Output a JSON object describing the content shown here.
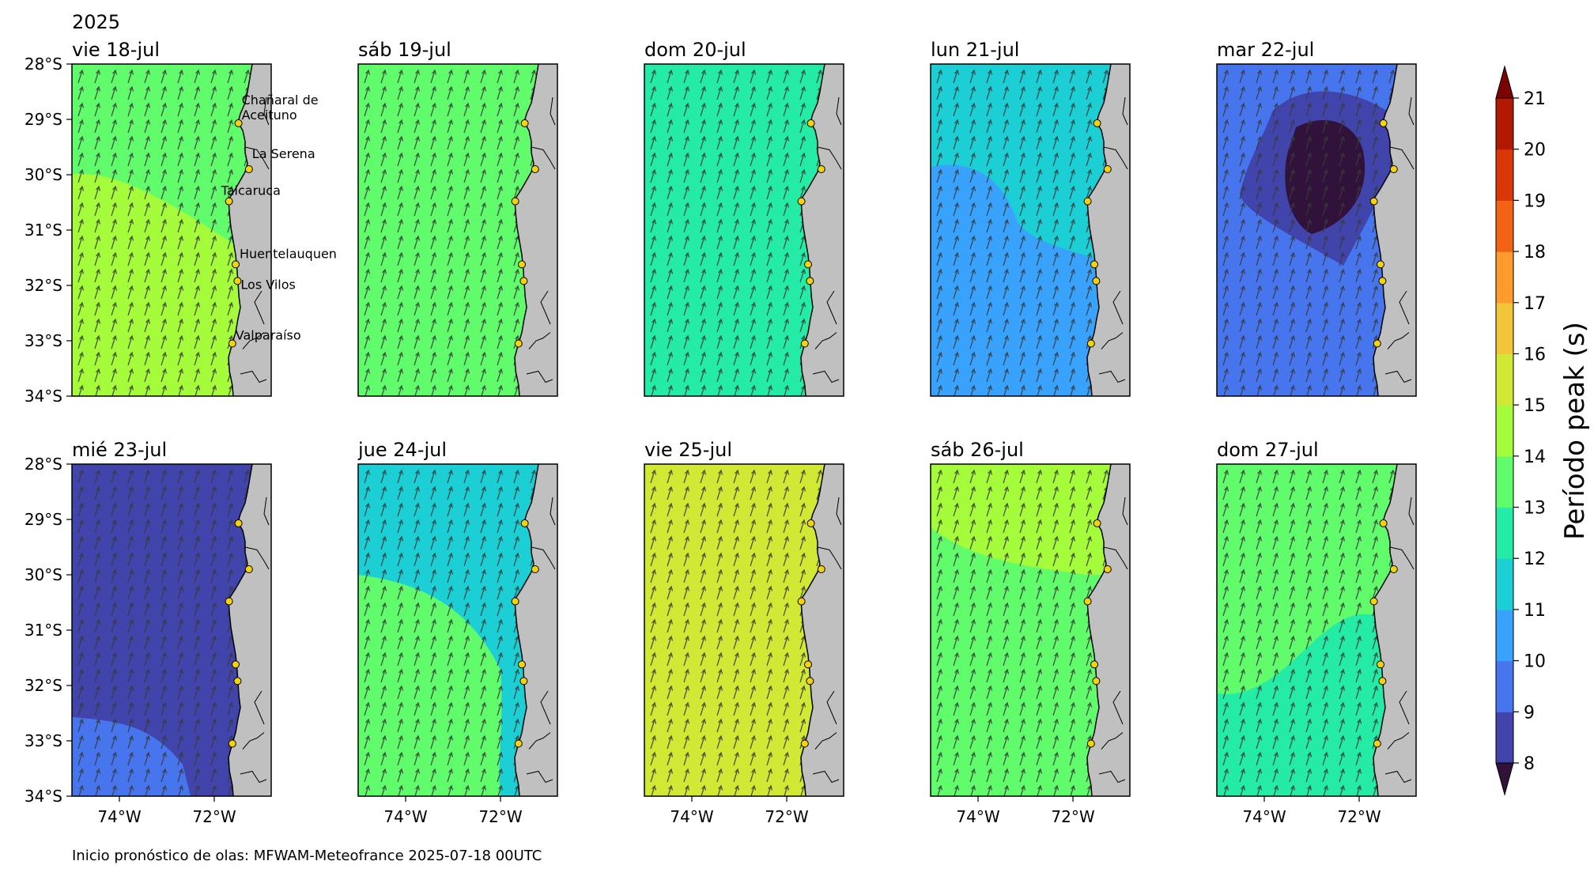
{
  "chart_data": {
    "type": "heatmap",
    "year_label": "2025",
    "colorbar": {
      "label": "Período peak (s)",
      "ticks": [
        8,
        9,
        10,
        11,
        12,
        13,
        14,
        15,
        16,
        17,
        18,
        19,
        20,
        21
      ],
      "colors": [
        "#30123b",
        "#4145ab",
        "#4675ed",
        "#39a2fc",
        "#1bcfd4",
        "#24eca6",
        "#61fc6c",
        "#a4fc3b",
        "#d1e834",
        "#f3c63a",
        "#fe9b2d",
        "#f36315",
        "#d93806",
        "#b11901",
        "#7a0402"
      ],
      "extend": "both"
    },
    "lat_ticks": [
      "28°S",
      "29°S",
      "30°S",
      "31°S",
      "32°S",
      "33°S",
      "34°S"
    ],
    "lon_ticks": [
      "74°W",
      "72°W"
    ],
    "footer": "Inicio pronóstico de olas: MFWAM-Meteofrance 2025-07-18 00UTC",
    "locations": [
      {
        "name": "Chañaral de\nAceituno",
        "lat": -29.07,
        "lon": -71.49
      },
      {
        "name": "La Serena",
        "lat": -29.9,
        "lon": -71.27
      },
      {
        "name": "Talcaruca",
        "lat": -30.48,
        "lon": -71.69
      },
      {
        "name": "Huentelauquen",
        "lat": -31.62,
        "lon": -71.55
      },
      {
        "name": "Los Vilos",
        "lat": -31.92,
        "lon": -71.51
      },
      {
        "name": "Valparaíso",
        "lat": -33.05,
        "lon": -71.62
      }
    ],
    "panels": [
      {
        "day": "vie 18-jul",
        "period_s": {
          "north": 14.5,
          "south": 15.5
        }
      },
      {
        "day": "sáb 19-jul",
        "period_s": {
          "north": 14.5,
          "south": 14.5
        }
      },
      {
        "day": "dom 20-jul",
        "period_s": {
          "north": 13.5,
          "south": 13.5
        }
      },
      {
        "day": "lun 21-jul",
        "period_s": {
          "north": 12.5,
          "south": 11.5
        }
      },
      {
        "day": "mar 22-jul",
        "period_s": {
          "north": 10.5,
          "core": 8.5
        }
      },
      {
        "day": "mié 23-jul",
        "period_s": {
          "north": 9.5,
          "south": 10.5
        }
      },
      {
        "day": "jue 24-jul",
        "period_s": {
          "north": 12.5,
          "south": 14.5
        }
      },
      {
        "day": "vie 25-jul",
        "period_s": {
          "north": 16.5,
          "south": 16.5
        }
      },
      {
        "day": "sáb 26-jul",
        "period_s": {
          "north": 15.5,
          "south": 14.5
        }
      },
      {
        "day": "dom 27-jul",
        "period_s": {
          "north": 14.5,
          "south": 13.5
        }
      }
    ]
  }
}
